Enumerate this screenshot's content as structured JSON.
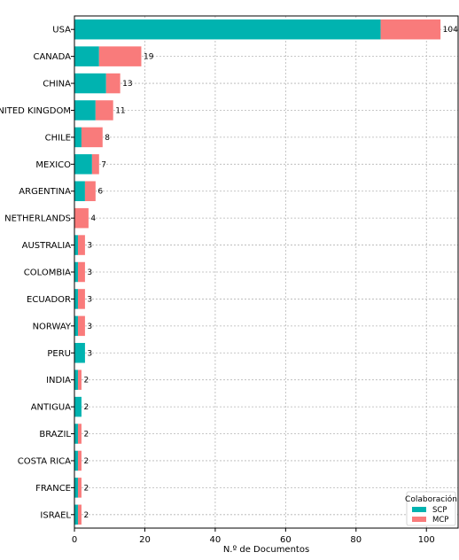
{
  "chart_data": {
    "type": "bar",
    "orientation": "horizontal",
    "stacked": true,
    "categories": [
      "USA",
      "CANADA",
      "CHINA",
      "UNITED KINGDOM",
      "CHILE",
      "MEXICO",
      "ARGENTINA",
      "NETHERLANDS",
      "AUSTRALIA",
      "COLOMBIA",
      "ECUADOR",
      "NORWAY",
      "PERU",
      "INDIA",
      "ANTIGUA",
      "BRAZIL",
      "COSTA RICA",
      "FRANCE",
      "ISRAEL"
    ],
    "series": [
      {
        "name": "SCP",
        "color": "#00b3b0",
        "values": [
          87,
          7,
          9,
          6,
          2,
          5,
          3,
          0,
          1,
          1,
          1,
          1,
          3,
          1,
          2,
          1,
          1,
          1,
          1
        ]
      },
      {
        "name": "MCP",
        "color": "#f97b7b",
        "values": [
          17,
          12,
          4,
          5,
          6,
          2,
          3,
          4,
          2,
          2,
          2,
          2,
          0,
          1,
          0,
          1,
          1,
          1,
          1
        ]
      }
    ],
    "totals": [
      "104",
      "19",
      "13",
      "11",
      "8",
      "7",
      "6",
      "4",
      "3",
      "3",
      "3",
      "3",
      "3",
      "2",
      "2",
      "2",
      "2",
      "2",
      "2"
    ],
    "xlabel": "N.º de Documentos",
    "xlim": [
      0,
      109
    ],
    "xticks": [
      0,
      20,
      40,
      60,
      80,
      100
    ],
    "tick_labels": [
      "0",
      "20",
      "40",
      "60",
      "80",
      "100"
    ],
    "grid": true,
    "legend": {
      "title": "Colaboración",
      "position": "bottom-right"
    }
  }
}
